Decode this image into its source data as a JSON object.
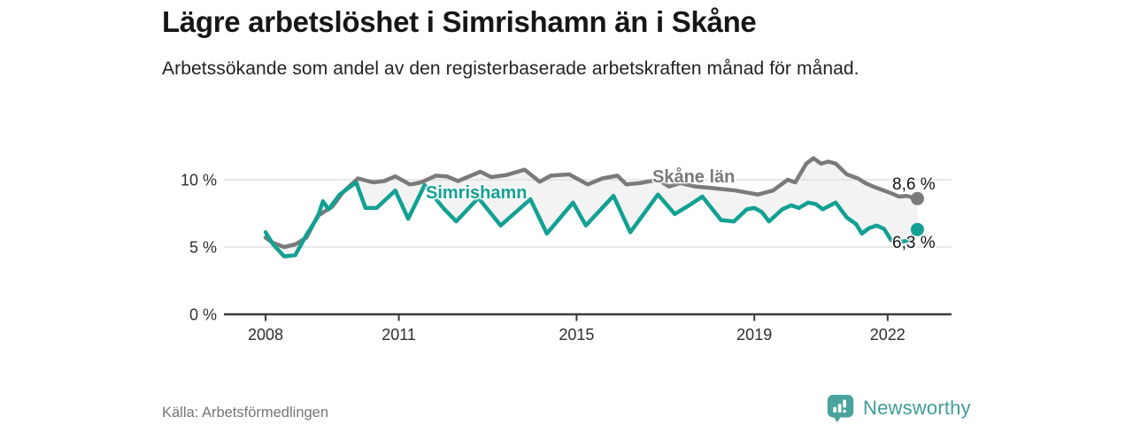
{
  "header": {
    "title": "Lägre arbetslöshet i Simrishamn än i Skåne",
    "subtitle": "Arbetssökande som andel av den registerbaserade arbetskraften månad för månad."
  },
  "footer": {
    "source": "Källa: Arbetsförmedlingen",
    "brand": "Newsworthy",
    "brand_icon": "bar-chart-speech-bubble-icon",
    "brand_color": "#4aa49d"
  },
  "chart_data": {
    "type": "line",
    "title": "Lägre arbetslöshet i Simrishamn än i Skåne",
    "xlabel": "",
    "ylabel": "",
    "unit": "%",
    "grid": "horizontal",
    "x_ticks": [
      2008,
      2011,
      2015,
      2019,
      2022
    ],
    "y_tick_labels": [
      "0 %",
      "5 %",
      "10 %"
    ],
    "y_tick_values": [
      0,
      5,
      10
    ],
    "x_range": [
      2008,
      2022.9
    ],
    "ylim": [
      0,
      12
    ],
    "band_fill": "#f3f3f3",
    "axis_color": "#3c3c3c",
    "grid_color": "#dadada",
    "series": [
      {
        "name": "Skåne län",
        "color": "#7a7a7a",
        "end_label": "8,6 %",
        "end_value": 8.6,
        "points": [
          [
            2008.0,
            5.7
          ],
          [
            2008.17,
            5.3
          ],
          [
            2008.42,
            5.0
          ],
          [
            2008.67,
            5.2
          ],
          [
            2008.92,
            5.7
          ],
          [
            2009.17,
            7.3
          ],
          [
            2009.5,
            8.0
          ],
          [
            2009.75,
            9.1
          ],
          [
            2010.08,
            10.1
          ],
          [
            2010.42,
            9.8
          ],
          [
            2010.67,
            9.9
          ],
          [
            2010.92,
            10.25
          ],
          [
            2011.25,
            9.65
          ],
          [
            2011.5,
            9.8
          ],
          [
            2011.83,
            10.3
          ],
          [
            2012.08,
            10.25
          ],
          [
            2012.33,
            9.9
          ],
          [
            2012.83,
            10.6
          ],
          [
            2013.08,
            10.2
          ],
          [
            2013.42,
            10.35
          ],
          [
            2013.83,
            10.75
          ],
          [
            2014.17,
            9.85
          ],
          [
            2014.42,
            10.3
          ],
          [
            2014.83,
            10.4
          ],
          [
            2015.25,
            9.65
          ],
          [
            2015.58,
            10.1
          ],
          [
            2015.92,
            10.3
          ],
          [
            2016.12,
            9.65
          ],
          [
            2016.42,
            9.75
          ],
          [
            2016.83,
            10.0
          ],
          [
            2017.08,
            9.5
          ],
          [
            2017.33,
            9.75
          ],
          [
            2017.67,
            9.5
          ],
          [
            2018.0,
            9.4
          ],
          [
            2018.58,
            9.2
          ],
          [
            2019.08,
            8.9
          ],
          [
            2019.42,
            9.2
          ],
          [
            2019.75,
            10.0
          ],
          [
            2019.92,
            9.8
          ],
          [
            2020.17,
            11.2
          ],
          [
            2020.33,
            11.6
          ],
          [
            2020.5,
            11.2
          ],
          [
            2020.67,
            11.35
          ],
          [
            2020.83,
            11.2
          ],
          [
            2021.08,
            10.4
          ],
          [
            2021.33,
            10.1
          ],
          [
            2021.5,
            9.75
          ],
          [
            2021.67,
            9.5
          ],
          [
            2021.92,
            9.2
          ],
          [
            2022.08,
            9.0
          ],
          [
            2022.25,
            8.75
          ],
          [
            2022.42,
            8.8
          ],
          [
            2022.67,
            8.6
          ]
        ]
      },
      {
        "name": "Simrishamn",
        "color": "#12a192",
        "end_label": "6,3 %",
        "end_value": 6.3,
        "points": [
          [
            2008.0,
            6.1
          ],
          [
            2008.17,
            5.2
          ],
          [
            2008.42,
            4.3
          ],
          [
            2008.67,
            4.4
          ],
          [
            2008.92,
            5.9
          ],
          [
            2009.17,
            7.2
          ],
          [
            2009.29,
            8.4
          ],
          [
            2009.42,
            7.8
          ],
          [
            2009.67,
            8.9
          ],
          [
            2010.04,
            9.8
          ],
          [
            2010.25,
            7.9
          ],
          [
            2010.5,
            7.9
          ],
          [
            2010.92,
            9.2
          ],
          [
            2011.21,
            7.1
          ],
          [
            2011.58,
            9.6
          ],
          [
            2012.0,
            7.9
          ],
          [
            2012.29,
            6.9
          ],
          [
            2012.79,
            8.65
          ],
          [
            2013.29,
            6.6
          ],
          [
            2013.96,
            8.55
          ],
          [
            2014.33,
            6.0
          ],
          [
            2014.92,
            8.3
          ],
          [
            2015.21,
            6.6
          ],
          [
            2015.83,
            8.8
          ],
          [
            2016.21,
            6.1
          ],
          [
            2016.83,
            8.9
          ],
          [
            2017.21,
            7.45
          ],
          [
            2017.58,
            8.2
          ],
          [
            2017.83,
            8.75
          ],
          [
            2018.25,
            7.0
          ],
          [
            2018.54,
            6.9
          ],
          [
            2018.83,
            7.8
          ],
          [
            2019.0,
            7.9
          ],
          [
            2019.17,
            7.6
          ],
          [
            2019.33,
            6.9
          ],
          [
            2019.63,
            7.8
          ],
          [
            2019.83,
            8.1
          ],
          [
            2020.0,
            7.9
          ],
          [
            2020.21,
            8.3
          ],
          [
            2020.38,
            8.2
          ],
          [
            2020.54,
            7.8
          ],
          [
            2020.83,
            8.3
          ],
          [
            2021.08,
            7.2
          ],
          [
            2021.29,
            6.7
          ],
          [
            2021.42,
            6.0
          ],
          [
            2021.58,
            6.4
          ],
          [
            2021.75,
            6.6
          ],
          [
            2021.92,
            6.35
          ],
          [
            2022.08,
            5.5
          ],
          [
            2022.33,
            5.4
          ],
          [
            2022.5,
            5.5
          ],
          [
            2022.67,
            6.3
          ]
        ]
      }
    ]
  }
}
